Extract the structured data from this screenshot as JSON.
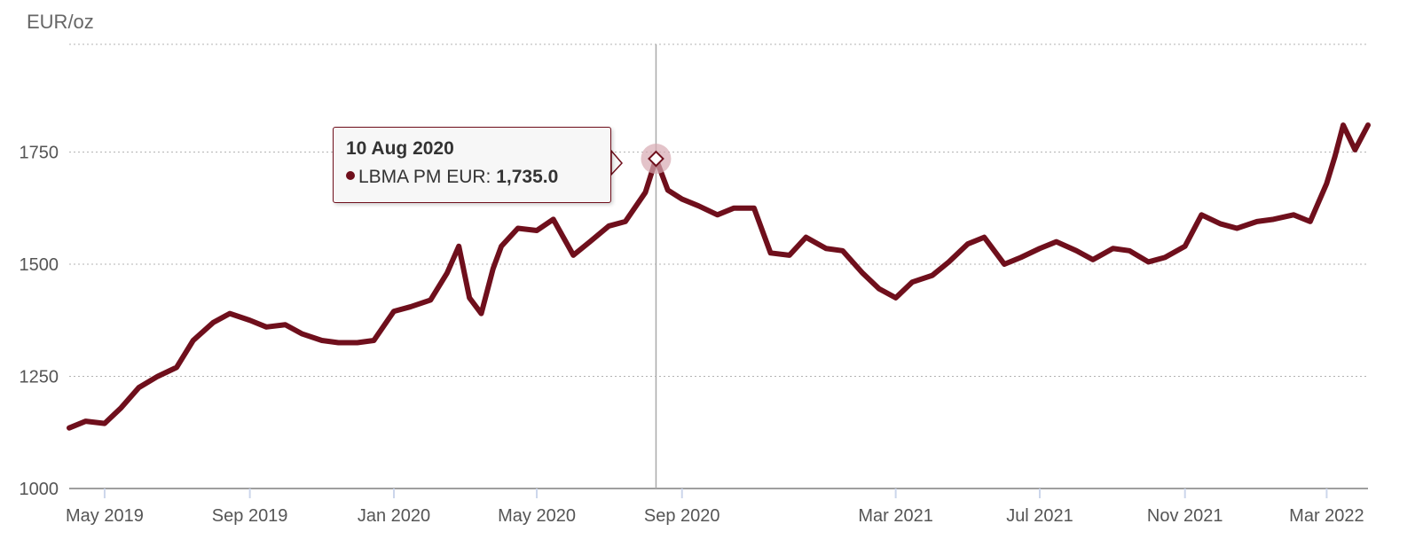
{
  "title": "",
  "y_axis_title": "EUR/oz",
  "colors": {
    "series": "#6f0f1c",
    "highlight": "#d7a9b2"
  },
  "chart_data": {
    "type": "line",
    "xlabel": "",
    "ylabel": "EUR/oz",
    "grid": "horizontal dotted",
    "ylim": [
      1000,
      1990
    ],
    "xlim": [
      "2019-04-01",
      "2022-04-05"
    ],
    "yticks": [
      1000,
      1250,
      1500,
      1750
    ],
    "xticks": [
      {
        "date": "2019-05-01",
        "label": "May 2019"
      },
      {
        "date": "2019-09-01",
        "label": "Sep 2019"
      },
      {
        "date": "2020-01-01",
        "label": "Jan 2020"
      },
      {
        "date": "2020-05-01",
        "label": "May 2020"
      },
      {
        "date": "2020-09-01",
        "label": "Sep 2020"
      },
      {
        "date": "2021-03-01",
        "label": "Mar 2021"
      },
      {
        "date": "2021-07-01",
        "label": "Jul 2021"
      },
      {
        "date": "2021-11-01",
        "label": "Nov 2021"
      },
      {
        "date": "2022-03-01",
        "label": "Mar 2022"
      }
    ],
    "series": [
      {
        "name": "LBMA PM EUR",
        "x": [
          "2019-04-01",
          "2019-04-15",
          "2019-05-01",
          "2019-05-15",
          "2019-05-30",
          "2019-06-15",
          "2019-07-01",
          "2019-07-15",
          "2019-08-01",
          "2019-08-15",
          "2019-09-01",
          "2019-09-15",
          "2019-10-01",
          "2019-10-15",
          "2019-11-01",
          "2019-11-15",
          "2019-12-01",
          "2019-12-15",
          "2020-01-01",
          "2020-01-15",
          "2020-02-01",
          "2020-02-15",
          "2020-02-25",
          "2020-03-05",
          "2020-03-15",
          "2020-03-25",
          "2020-04-01",
          "2020-04-15",
          "2020-05-01",
          "2020-05-15",
          "2020-06-01",
          "2020-06-15",
          "2020-07-01",
          "2020-07-15",
          "2020-08-01",
          "2020-08-10",
          "2020-08-20",
          "2020-09-01",
          "2020-09-15",
          "2020-10-01",
          "2020-10-15",
          "2020-11-01",
          "2020-11-15",
          "2020-12-01",
          "2020-12-15",
          "2021-01-01",
          "2021-01-15",
          "2021-02-01",
          "2021-02-15",
          "2021-03-01",
          "2021-03-15",
          "2021-04-01",
          "2021-04-15",
          "2021-05-01",
          "2021-05-15",
          "2021-06-01",
          "2021-06-15",
          "2021-07-01",
          "2021-07-15",
          "2021-08-01",
          "2021-08-15",
          "2021-09-01",
          "2021-09-15",
          "2021-10-01",
          "2021-10-15",
          "2021-11-01",
          "2021-11-15",
          "2021-12-01",
          "2021-12-15",
          "2022-01-01",
          "2022-01-15",
          "2022-02-01",
          "2022-02-15",
          "2022-03-01",
          "2022-03-08",
          "2022-03-15",
          "2022-03-25",
          "2022-04-05"
        ],
        "y": [
          1135,
          1150,
          1145,
          1180,
          1225,
          1250,
          1270,
          1330,
          1370,
          1390,
          1375,
          1360,
          1365,
          1345,
          1330,
          1325,
          1325,
          1330,
          1395,
          1405,
          1420,
          1480,
          1540,
          1425,
          1390,
          1490,
          1540,
          1580,
          1575,
          1600,
          1520,
          1550,
          1585,
          1595,
          1660,
          1735,
          1665,
          1645,
          1630,
          1610,
          1625,
          1625,
          1525,
          1520,
          1560,
          1535,
          1530,
          1480,
          1445,
          1425,
          1460,
          1475,
          1505,
          1545,
          1560,
          1500,
          1515,
          1535,
          1550,
          1530,
          1510,
          1535,
          1530,
          1505,
          1515,
          1540,
          1610,
          1590,
          1580,
          1595,
          1600,
          1610,
          1595,
          1680,
          1740,
          1810,
          1755,
          1810
        ]
      }
    ],
    "highlight": {
      "date": "10 Aug 2020",
      "x": "2020-08-10",
      "series": "LBMA PM EUR",
      "value_label": "1,735.0",
      "value": 1735.0
    }
  }
}
